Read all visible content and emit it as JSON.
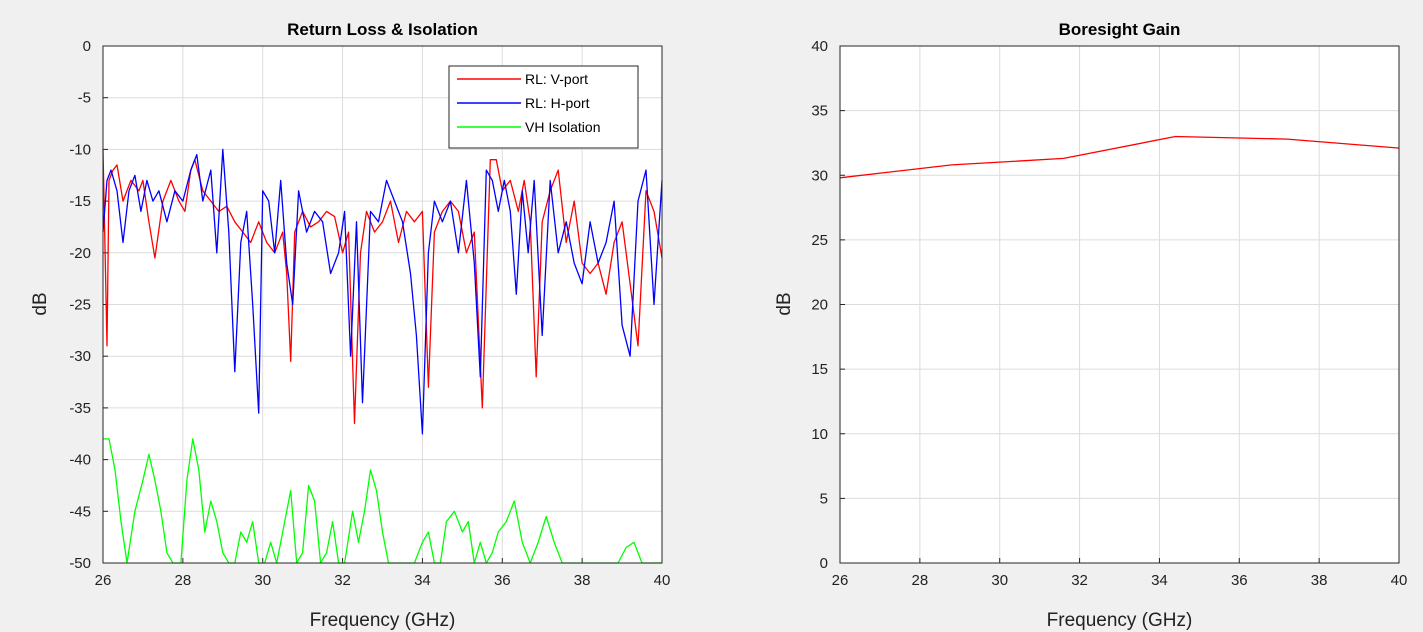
{
  "chart_data": [
    {
      "type": "line",
      "title": "Return Loss & Isolation",
      "xlabel": "Frequency (GHz)",
      "ylabel": "dB",
      "xlim": [
        26,
        40
      ],
      "ylim": [
        -50,
        0
      ],
      "xticks": [
        26,
        28,
        30,
        32,
        34,
        36,
        38,
        40
      ],
      "yticks": [
        0,
        -5,
        -10,
        -15,
        -20,
        -25,
        -30,
        -35,
        -40,
        -45,
        -50
      ],
      "grid": true,
      "legend_position": "top-right",
      "series": [
        {
          "name": "RL: V-port",
          "color": "#ff0000",
          "x": [
            26.0,
            26.1,
            26.15,
            26.25,
            26.35,
            26.5,
            26.7,
            26.9,
            27.0,
            27.15,
            27.3,
            27.5,
            27.7,
            27.9,
            28.05,
            28.2,
            28.3,
            28.5,
            28.7,
            28.9,
            29.1,
            29.3,
            29.5,
            29.7,
            29.9,
            30.1,
            30.3,
            30.5,
            30.6,
            30.7,
            30.8,
            31.0,
            31.2,
            31.4,
            31.6,
            31.8,
            32.0,
            32.15,
            32.3,
            32.45,
            32.6,
            32.8,
            33.0,
            33.2,
            33.4,
            33.6,
            33.8,
            34.0,
            34.15,
            34.3,
            34.5,
            34.7,
            34.9,
            35.1,
            35.3,
            35.5,
            35.7,
            35.85,
            36.0,
            36.2,
            36.4,
            36.55,
            36.7,
            36.85,
            37.0,
            37.2,
            37.4,
            37.6,
            37.8,
            38.0,
            38.2,
            38.4,
            38.6,
            38.8,
            39.0,
            39.2,
            39.4,
            39.6,
            39.8,
            40.0
          ],
          "y": [
            -10,
            -29,
            -13,
            -12,
            -11.5,
            -15,
            -13,
            -14,
            -13,
            -17,
            -20.5,
            -15,
            -13,
            -15,
            -16,
            -12,
            -11,
            -14,
            -15,
            -16,
            -15.5,
            -17,
            -18,
            -19,
            -17,
            -19,
            -20,
            -18,
            -22,
            -30.5,
            -18,
            -16,
            -17.5,
            -17,
            -16,
            -16.5,
            -20,
            -18,
            -36.5,
            -20,
            -16,
            -18,
            -17,
            -15,
            -19,
            -16,
            -17,
            -16,
            -33,
            -18,
            -16,
            -15,
            -16,
            -20,
            -18,
            -35,
            -11,
            -11,
            -14,
            -13,
            -16,
            -13,
            -17,
            -32,
            -17,
            -14,
            -12,
            -19,
            -15,
            -21,
            -22,
            -21,
            -24,
            -19,
            -17,
            -23,
            -29,
            -14,
            -16,
            -20.5
          ]
        },
        {
          "name": "RL: H-port",
          "color": "#0000ff",
          "x": [
            26.0,
            26.1,
            26.2,
            26.35,
            26.5,
            26.65,
            26.8,
            26.95,
            27.1,
            27.25,
            27.4,
            27.6,
            27.8,
            28.0,
            28.2,
            28.35,
            28.5,
            28.7,
            28.85,
            29.0,
            29.15,
            29.3,
            29.45,
            29.6,
            29.75,
            29.9,
            30.0,
            30.15,
            30.3,
            30.45,
            30.6,
            30.75,
            30.9,
            31.1,
            31.3,
            31.5,
            31.7,
            31.9,
            32.05,
            32.2,
            32.35,
            32.5,
            32.7,
            32.9,
            33.1,
            33.3,
            33.5,
            33.7,
            33.85,
            34.0,
            34.15,
            34.3,
            34.5,
            34.7,
            34.9,
            35.1,
            35.3,
            35.45,
            35.6,
            35.75,
            35.9,
            36.05,
            36.2,
            36.35,
            36.5,
            36.65,
            36.8,
            37.0,
            37.2,
            37.4,
            37.6,
            37.8,
            38.0,
            38.2,
            38.4,
            38.6,
            38.8,
            39.0,
            39.2,
            39.4,
            39.6,
            39.8,
            40.0
          ],
          "y": [
            -18,
            -13,
            -12,
            -14,
            -19,
            -14,
            -12.5,
            -16,
            -13,
            -15,
            -14,
            -17,
            -14,
            -15,
            -12,
            -10.5,
            -15,
            -12,
            -20,
            -10,
            -18,
            -31.5,
            -19,
            -16,
            -25,
            -35.5,
            -14,
            -15,
            -20,
            -13,
            -21,
            -25,
            -14,
            -18,
            -16,
            -17,
            -22,
            -20,
            -16,
            -30,
            -17,
            -34.5,
            -16,
            -17,
            -13,
            -15,
            -17,
            -22,
            -28,
            -37.5,
            -20,
            -15,
            -17,
            -15,
            -20,
            -13,
            -21,
            -32,
            -12,
            -13,
            -16,
            -13,
            -16,
            -24,
            -14,
            -20,
            -13,
            -28,
            -13,
            -20,
            -17,
            -21,
            -23,
            -17,
            -21,
            -19,
            -15,
            -27,
            -30,
            -15,
            -12,
            -25,
            -13
          ]
        },
        {
          "name": "VH Isolation",
          "color": "#00ff00",
          "x": [
            26.0,
            26.15,
            26.3,
            26.45,
            26.6,
            26.8,
            27.0,
            27.15,
            27.3,
            27.45,
            27.6,
            27.75,
            27.95,
            28.1,
            28.25,
            28.4,
            28.55,
            28.7,
            28.85,
            29.0,
            29.15,
            29.3,
            29.45,
            29.6,
            29.75,
            29.9,
            30.05,
            30.2,
            30.35,
            30.55,
            30.7,
            30.85,
            31.0,
            31.15,
            31.3,
            31.45,
            31.6,
            31.75,
            31.9,
            32.05,
            32.25,
            32.4,
            32.55,
            32.7,
            32.85,
            33.0,
            33.15,
            33.3,
            33.45,
            33.6,
            33.8,
            34.0,
            34.15,
            34.3,
            34.45,
            34.6,
            34.8,
            35.0,
            35.15,
            35.3,
            35.45,
            35.6,
            35.75,
            35.9,
            36.1,
            36.3,
            36.5,
            36.7,
            36.9,
            37.1,
            37.3,
            37.5,
            37.7,
            37.9,
            38.1,
            38.3,
            38.5,
            38.7,
            38.9,
            39.1,
            39.3,
            39.5,
            39.7,
            39.9,
            40.0
          ],
          "y": [
            -38,
            -38,
            -41,
            -46,
            -50,
            -45,
            -42,
            -39.5,
            -42,
            -45,
            -49,
            -50,
            -50,
            -42,
            -38,
            -41,
            -47,
            -44,
            -46,
            -49,
            -50,
            -50,
            -47,
            -48,
            -46,
            -50,
            -50,
            -48,
            -50,
            -46,
            -43,
            -50,
            -49,
            -42.5,
            -44,
            -50,
            -49,
            -46,
            -50,
            -50,
            -45,
            -48,
            -45,
            -41,
            -43,
            -47,
            -50,
            -50,
            -50,
            -50,
            -50,
            -48,
            -47,
            -50,
            -50,
            -46,
            -45,
            -47,
            -46,
            -50,
            -48,
            -50,
            -49,
            -47,
            -46,
            -44,
            -48,
            -50,
            -48,
            -45.5,
            -48,
            -50,
            -50,
            -50,
            -50,
            -50,
            -50,
            -50,
            -50,
            -48.5,
            -48,
            -50,
            -50,
            -50,
            -50
          ]
        }
      ]
    },
    {
      "type": "line",
      "title": "Boresight Gain",
      "xlabel": "Frequency (GHz)",
      "ylabel": "dB",
      "xlim": [
        26,
        40
      ],
      "ylim": [
        0,
        40
      ],
      "xticks": [
        26,
        28,
        30,
        32,
        34,
        36,
        38,
        40
      ],
      "yticks": [
        0,
        5,
        10,
        15,
        20,
        25,
        30,
        35,
        40
      ],
      "grid": true,
      "series": [
        {
          "color": "#ff0000",
          "x": [
            26,
            28.8,
            31.6,
            34.4,
            37.2,
            40
          ],
          "y": [
            29.8,
            30.8,
            31.3,
            33.0,
            32.8,
            32.1
          ]
        }
      ]
    }
  ]
}
